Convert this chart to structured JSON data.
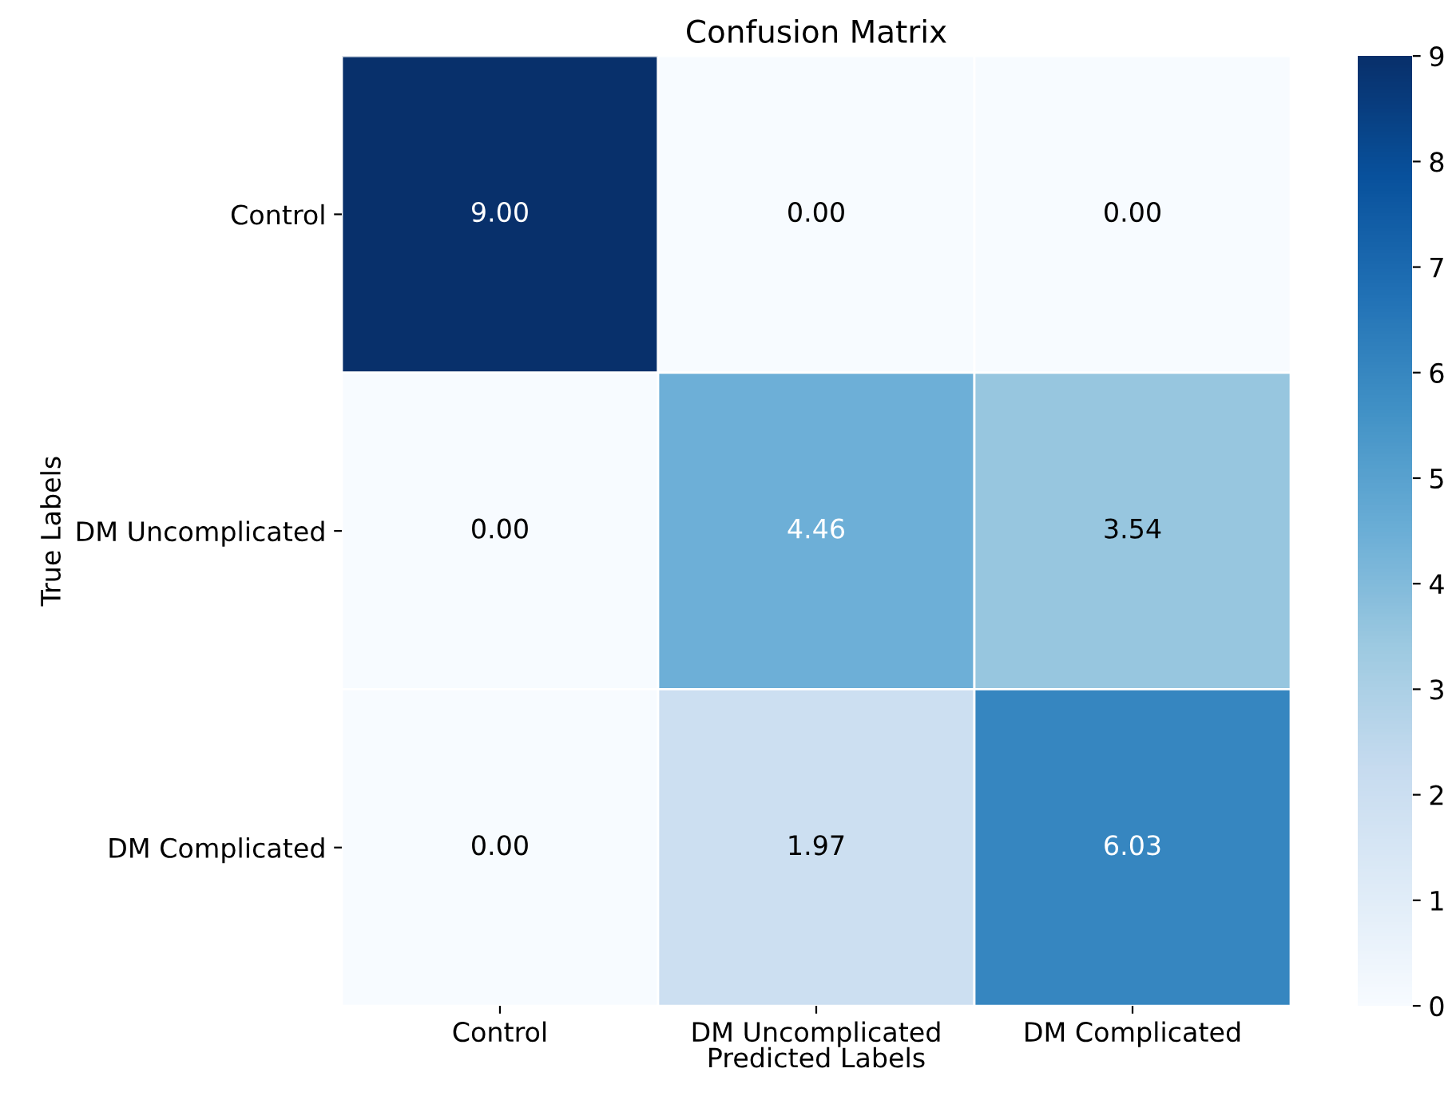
{
  "chart_data": {
    "type": "heatmap",
    "title": "Confusion Matrix",
    "xlabel": "Predicted Labels",
    "ylabel": "True Labels",
    "categories": [
      "Control",
      "DM Uncomplicated",
      "DM Complicated"
    ],
    "y_categories": [
      "Control",
      "DM Uncomplicated",
      "DM Complicated"
    ],
    "cells": [
      [
        9.0,
        0.0,
        0.0
      ],
      [
        0.0,
        4.46,
        3.54
      ],
      [
        0.0,
        1.97,
        6.03
      ]
    ],
    "cell_labels": [
      [
        "9.00",
        "0.00",
        "0.00"
      ],
      [
        "0.00",
        "4.46",
        "3.54"
      ],
      [
        "0.00",
        "1.97",
        "6.03"
      ]
    ],
    "clim": [
      0,
      9
    ],
    "cticks": [
      0,
      1,
      2,
      3,
      4,
      5,
      6,
      7,
      8,
      9
    ]
  }
}
